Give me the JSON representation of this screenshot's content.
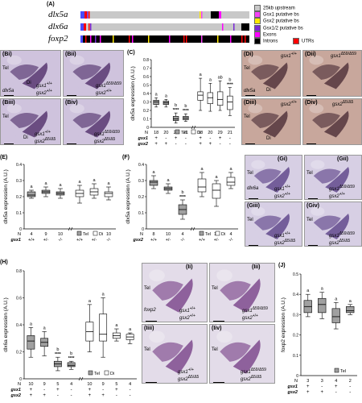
{
  "panelA": {
    "label": "(A)",
    "genes": [
      "dlx5a",
      "dlx6a",
      "foxp2"
    ],
    "legend": [
      {
        "label": "25kb upstream",
        "color": "#c8c8c8"
      },
      {
        "label": "Gsx1 putative bs",
        "color": "#f542f5"
      },
      {
        "label": "Gsx2 putative bs",
        "color": "#ffea00"
      },
      {
        "label": "Gsx1/2 putative bs",
        "color": "#7a2ad6"
      },
      {
        "label": "Exons",
        "color": "#ff00ff"
      },
      {
        "label": "Introns",
        "color": "#000000"
      },
      {
        "label": "UTRs",
        "color": "#ff0000"
      }
    ]
  },
  "images": {
    "B1": {
      "label": "(Bi)",
      "tel": "Tel",
      "di": "Di",
      "gene": "dlx5a",
      "g1": "gsx1",
      "g1sup": "+/+",
      "g2": "gsx2",
      "g2sup": "+/+"
    },
    "B2": {
      "label": "(Bii)",
      "g1": "gsx1",
      "g1sup": "Δ59/Δ59",
      "g2": "gsx2",
      "g2sup": "+/+"
    },
    "B3": {
      "label": "(Biii)",
      "tel": "Tel",
      "di": "Di",
      "g1": "gsx1",
      "g1sup": "+/+",
      "g2": "gsx2",
      "g2sup": "Δ5/Δ5"
    },
    "B4": {
      "label": "(Biv)",
      "g1": "gsx1",
      "g1sup": "Δ59/Δ59",
      "g2": "gsx2",
      "g2sup": "Δ5/Δ5"
    },
    "D1": {
      "label": "(Di)",
      "tel": "Tel",
      "di": "Di",
      "gene": "dlx5a",
      "g": "gsx1",
      "gsup": "+/+"
    },
    "D2": {
      "label": "(Dii)",
      "g": "gsx1",
      "gsup": "Δ59/Δ59"
    },
    "D3": {
      "label": "(Diii)",
      "tel": "Tel",
      "di": "Di",
      "g": "gsx2",
      "gsup": "+/+"
    },
    "D4": {
      "label": "(Div)",
      "g": "gsx2",
      "gsup": "Δ5/Δ5"
    },
    "G1": {
      "label": "(Gi)",
      "tel": "Tel",
      "gene": "dlx6a",
      "g1": "gsx1",
      "g1sup": "+/+",
      "g2": "gsx2",
      "g2sup": "+/+"
    },
    "G2": {
      "label": "(Gii)",
      "tel": "Tel",
      "g1": "gsx1",
      "g1sup": "Δ59/Δ59",
      "g2": "gsx2",
      "g2sup": "+/+"
    },
    "G3": {
      "label": "(Giii)",
      "tel": "Tel",
      "g1": "gsx1",
      "g1sup": "+/+",
      "g2": "gsx2",
      "g2sup": "Δ5/Δ5"
    },
    "G4": {
      "label": "(Giv)",
      "tel": "Tel",
      "g1": "gsx1",
      "g1sup": "Δ59/Δ59",
      "g2": "gsx2",
      "g2sup": "Δ5/Δ5"
    },
    "I1": {
      "label": "(Ii)",
      "tel": "Tel",
      "gene": "foxp2",
      "g1": "gsx1",
      "g1sup": "+/+",
      "g2": "gsx2",
      "g2sup": "+/+"
    },
    "I2": {
      "label": "(Iii)",
      "tel": "Tel",
      "g1": "gsx1",
      "g1sup": "Δ59/Δ59",
      "g2": "gsx2",
      "g2sup": "+/+"
    },
    "I3": {
      "label": "(Iiii)",
      "tel": "Tel",
      "g1": "gsx1",
      "g1sup": "+/+",
      "g2": "gsx2",
      "g2sup": "Δ5/Δ5"
    },
    "I4": {
      "label": "(Iiv)",
      "tel": "Tel",
      "g1": "gsx1",
      "g1sup": "Δ59/Δ59",
      "g2": "gsx2",
      "g2sup": "Δ5/Δ5"
    }
  },
  "chart_data": [
    {
      "id": "C",
      "type": "box",
      "panel_label": "(C)",
      "ylabel": "dlx5a expression (A.U.)",
      "ylim": [
        0,
        0.8
      ],
      "yticks": [
        0,
        0.1,
        0.2,
        0.3,
        0.4,
        0.5,
        0.6,
        0.7,
        0.8
      ],
      "legend": [
        "Tel",
        "Di"
      ],
      "row_labels": [
        "N",
        "gsx1",
        "gsx2"
      ],
      "columns": [
        {
          "n": "18",
          "g1": "+",
          "g2": "+",
          "group": "Tel",
          "box": [
            0.24,
            0.27,
            0.3,
            0.32,
            0.35
          ],
          "sig": "a"
        },
        {
          "n": "20",
          "g1": "-",
          "g2": "+",
          "group": "Tel",
          "box": [
            0.24,
            0.27,
            0.29,
            0.31,
            0.33
          ],
          "sig": "a"
        },
        {
          "n": "29",
          "g1": "+",
          "g2": "-",
          "group": "Tel",
          "box": [
            0.05,
            0.08,
            0.1,
            0.13,
            0.17
          ],
          "sig": "b",
          "stars": "****"
        },
        {
          "n": "21",
          "g1": "-",
          "g2": "-",
          "group": "Tel",
          "box": [
            0.07,
            0.09,
            0.11,
            0.13,
            0.16
          ],
          "sig": "b",
          "stars": "****"
        },
        {
          "n": "18",
          "g1": "+",
          "g2": "+",
          "group": "Di",
          "box": [
            0.2,
            0.32,
            0.38,
            0.42,
            0.58
          ],
          "sig": "a"
        },
        {
          "n": "20",
          "g1": "-",
          "g2": "+",
          "group": "Di",
          "box": [
            0.19,
            0.28,
            0.35,
            0.41,
            0.52
          ],
          "sig": "a"
        },
        {
          "n": "29",
          "g1": "+",
          "g2": "-",
          "group": "Di",
          "box": [
            0.2,
            0.26,
            0.33,
            0.42,
            0.55
          ],
          "sig": "ab"
        },
        {
          "n": "21",
          "g1": "-",
          "g2": "-",
          "group": "Di",
          "box": [
            0.14,
            0.21,
            0.3,
            0.37,
            0.47
          ],
          "sig": "b",
          "stars": "****"
        }
      ]
    },
    {
      "id": "E",
      "type": "box",
      "panel_label": "(E)",
      "ylabel": "dlx5a expression (A.U.)",
      "ylim": [
        0,
        0.4
      ],
      "yticks": [
        0,
        0.1,
        0.2,
        0.3,
        0.4
      ],
      "legend": [
        "Tel",
        "Di"
      ],
      "row_labels": [
        "N",
        "gsx1"
      ],
      "columns": [
        {
          "n": "4",
          "g": "+/+",
          "group": "Tel",
          "box": [
            0.19,
            0.2,
            0.21,
            0.23,
            0.24
          ],
          "sig": "a"
        },
        {
          "n": "9",
          "g": "+/-",
          "group": "Tel",
          "box": [
            0.2,
            0.22,
            0.23,
            0.24,
            0.26
          ],
          "sig": "a"
        },
        {
          "n": "10",
          "g": "-/-",
          "group": "Tel",
          "box": [
            0.19,
            0.21,
            0.22,
            0.23,
            0.25
          ],
          "sig": "a"
        },
        {
          "n": "4",
          "g": "+/+",
          "group": "Di",
          "box": [
            0.16,
            0.2,
            0.22,
            0.24,
            0.27
          ],
          "sig": "a"
        },
        {
          "n": "9",
          "g": "+/-",
          "group": "Di",
          "box": [
            0.19,
            0.21,
            0.23,
            0.25,
            0.28
          ],
          "sig": "a"
        },
        {
          "n": "10",
          "g": "-/-",
          "group": "Di",
          "box": [
            0.18,
            0.2,
            0.22,
            0.23,
            0.26
          ],
          "sig": "a"
        }
      ]
    },
    {
      "id": "F",
      "type": "box",
      "panel_label": "(F)",
      "ylabel": "dlx5a expression (A.U.)",
      "ylim": [
        0,
        0.4
      ],
      "yticks": [
        0,
        0.1,
        0.2,
        0.3,
        0.4
      ],
      "legend": [
        "Tel",
        "Di"
      ],
      "row_labels": [
        "N",
        "gsx2"
      ],
      "columns": [
        {
          "n": "8",
          "g": "+/+",
          "group": "Tel",
          "box": [
            0.25,
            0.27,
            0.29,
            0.3,
            0.33
          ],
          "sig": "a"
        },
        {
          "n": "10",
          "g": "+/-",
          "group": "Tel",
          "box": [
            0.22,
            0.24,
            0.25,
            0.26,
            0.28
          ],
          "sig": "a"
        },
        {
          "n": "4",
          "g": "-/-",
          "group": "Tel",
          "box": [
            0.06,
            0.09,
            0.12,
            0.15,
            0.18
          ],
          "sig": "b",
          "stars": "****"
        },
        {
          "n": "8",
          "g": "+/+",
          "group": "Di",
          "box": [
            0.2,
            0.23,
            0.26,
            0.31,
            0.35
          ],
          "sig": "a"
        },
        {
          "n": "10",
          "g": "+/-",
          "group": "Di",
          "box": [
            0.14,
            0.19,
            0.24,
            0.28,
            0.3
          ],
          "sig": "a"
        },
        {
          "n": "4",
          "g": "-/-",
          "group": "Di",
          "box": [
            0.25,
            0.27,
            0.29,
            0.32,
            0.35
          ],
          "sig": "a"
        }
      ]
    },
    {
      "id": "H",
      "type": "box",
      "panel_label": "(H)",
      "ylabel": "dlx6a expression (A.U.)",
      "ylim": [
        0,
        0.8
      ],
      "yticks": [
        0,
        0.2,
        0.4,
        0.6,
        0.8
      ],
      "legend": [
        "Tel",
        "Di"
      ],
      "row_labels": [
        "N",
        "gsx1",
        "gsx2"
      ],
      "columns": [
        {
          "n": "10",
          "g1": "+",
          "g2": "+",
          "group": "Tel",
          "box": [
            0.16,
            0.22,
            0.28,
            0.32,
            0.38
          ],
          "sig": "a"
        },
        {
          "n": "9",
          "g1": "-",
          "g2": "+",
          "group": "Tel",
          "box": [
            0.17,
            0.24,
            0.27,
            0.3,
            0.35
          ],
          "sig": "a"
        },
        {
          "n": "5",
          "g1": "+",
          "g2": "-",
          "group": "Tel",
          "box": [
            0.06,
            0.09,
            0.11,
            0.13,
            0.16
          ],
          "sig": "b",
          "stars": "****"
        },
        {
          "n": "4",
          "g1": "-",
          "g2": "-",
          "group": "Tel",
          "box": [
            0.07,
            0.09,
            0.1,
            0.12,
            0.13
          ],
          "sig": "b",
          "stars": "****"
        },
        {
          "n": "10",
          "g1": "+",
          "g2": "+",
          "group": "Di",
          "box": [
            0.2,
            0.28,
            0.35,
            0.42,
            0.55
          ],
          "sig": "a"
        },
        {
          "n": "9",
          "g1": "-",
          "g2": "+",
          "group": "Di",
          "box": [
            0.16,
            0.28,
            0.33,
            0.48,
            0.6
          ],
          "sig": "a"
        },
        {
          "n": "5",
          "g1": "+",
          "g2": "-",
          "group": "Di",
          "box": [
            0.28,
            0.3,
            0.32,
            0.34,
            0.37
          ],
          "sig": "a"
        },
        {
          "n": "4",
          "g1": "-",
          "g2": "-",
          "group": "Di",
          "box": [
            0.26,
            0.29,
            0.31,
            0.33,
            0.34
          ],
          "sig": "a"
        }
      ]
    },
    {
      "id": "J",
      "type": "box",
      "panel_label": "(J)",
      "ylabel": "foxp2 expression (A.U.)",
      "ylim": [
        0,
        0.5
      ],
      "yticks": [
        0,
        0.1,
        0.2,
        0.3,
        0.4,
        0.5
      ],
      "legend": [
        "Tel"
      ],
      "row_labels": [
        "N",
        "gsx1",
        "gsx2"
      ],
      "columns": [
        {
          "n": "3",
          "g1": "+",
          "g2": "+",
          "group": "Tel",
          "box": [
            0.29,
            0.31,
            0.34,
            0.37,
            0.4
          ],
          "sig": "a"
        },
        {
          "n": "3",
          "g1": "-",
          "g2": "+",
          "group": "Tel",
          "box": [
            0.28,
            0.31,
            0.35,
            0.38,
            0.41
          ],
          "sig": "a"
        },
        {
          "n": "4",
          "g1": "+",
          "g2": "-",
          "group": "Tel",
          "box": [
            0.23,
            0.26,
            0.29,
            0.33,
            0.36
          ],
          "sig": "a"
        },
        {
          "n": "2",
          "g1": "-",
          "g2": "-",
          "group": "Tel",
          "box": [
            0.3,
            0.31,
            0.32,
            0.34,
            0.35
          ],
          "sig": "a"
        }
      ]
    }
  ]
}
